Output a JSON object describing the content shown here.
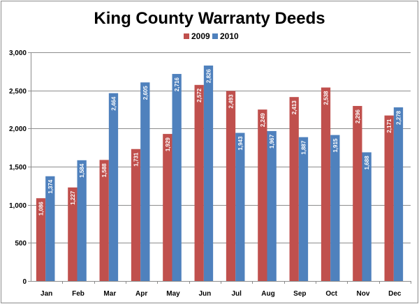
{
  "chart_data": {
    "type": "bar",
    "title": "King County Warranty Deeds",
    "categories": [
      "Jan",
      "Feb",
      "Mar",
      "Apr",
      "May",
      "Jun",
      "Jul",
      "Aug",
      "Sep",
      "Oct",
      "Nov",
      "Dec"
    ],
    "series": [
      {
        "name": "2009",
        "color": "#c0504d",
        "values": [
          1086,
          1227,
          1588,
          1731,
          1929,
          2572,
          2493,
          2249,
          2413,
          2538,
          2296,
          2171
        ]
      },
      {
        "name": "2010",
        "color": "#4f81bd",
        "values": [
          1374,
          1584,
          2464,
          2605,
          2716,
          2826,
          1943,
          1967,
          1887,
          1915,
          1688,
          2278
        ]
      }
    ],
    "data_labels": [
      [
        "1,086",
        "1,227",
        "1,588",
        "1,731",
        "1,929",
        "2,572",
        "2,493",
        "2,249",
        "2,413",
        "2,538",
        "2,296",
        "2,171"
      ],
      [
        "1,374",
        "1,584",
        "2,464",
        "2,605",
        "2,716",
        "2,826",
        "1,943",
        "1,967",
        "1,887",
        "1,915",
        "1,688",
        "2,278"
      ]
    ],
    "ylim": [
      0,
      3000
    ],
    "yticks": [
      0,
      500,
      1000,
      1500,
      2000,
      2500,
      3000
    ],
    "ytick_labels": [
      "0",
      "500",
      "1,000",
      "1,500",
      "2,000",
      "2,500",
      "3,000"
    ],
    "legend": "top-center",
    "grid": true
  }
}
